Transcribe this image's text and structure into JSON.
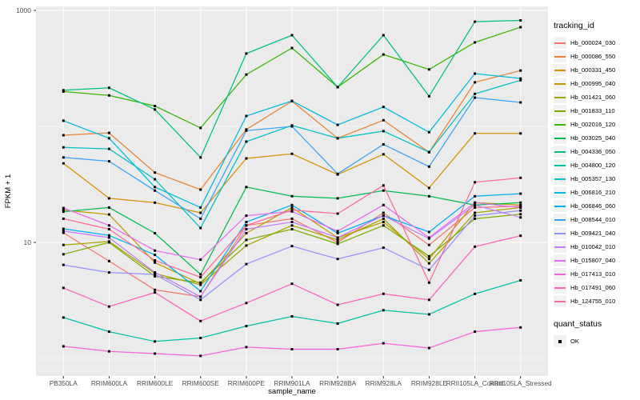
{
  "figure": {
    "outer_bg": "#ffffff",
    "panel_bg": "#ebebeb",
    "grid_color": "#ffffff",
    "tick_color": "#333333",
    "tick_label_color": "#4d4d4d",
    "axis_title_color": "#000000",
    "point_color": "#000000"
  },
  "chart_data": {
    "type": "line",
    "title": "",
    "xlabel": "sample_name",
    "ylabel": "FPKM + 1",
    "y_scale": "log10",
    "y_tick_labels": [
      "10",
      "1000"
    ],
    "y_ticks": [
      10,
      1000
    ],
    "y_minor_gridlines": [
      1,
      100
    ],
    "ylim": [
      0.7,
      1100
    ],
    "grid": true,
    "legend_position": "right",
    "legend_title": "tracking_id",
    "legend2_title": "quant_status",
    "legend2_items": [
      {
        "label": "OK",
        "marker": "black-square"
      }
    ],
    "categories": [
      "PB350LA",
      "RRIM600LA",
      "RRIM600LE",
      "RRIM600SE",
      "RRIM600PE",
      "RRIM901LA",
      "RRIM928BA",
      "RRIM928LA",
      "RRIM928LE",
      "RRII105LA_Control",
      "RRII105LA_Stressed"
    ],
    "series": [
      {
        "name": "Hb_000024_030",
        "color": "#F8766D",
        "values": [
          12.1,
          6.9,
          3.9,
          3.4,
          14,
          16,
          10,
          18,
          9.5,
          20,
          20.5
        ]
      },
      {
        "name": "Hb_000086_550",
        "color": "#EA8331",
        "values": [
          84,
          88,
          40,
          28.5,
          94,
          165,
          79,
          113,
          60,
          240,
          303
        ]
      },
      {
        "name": "Hb_000331_450",
        "color": "#D89000",
        "values": [
          48,
          24,
          22,
          18,
          53,
          58,
          38.5,
          57.5,
          29.5,
          87,
          87
        ]
      },
      {
        "name": "Hb_000995_040",
        "color": "#C09B00",
        "values": [
          19,
          17.4,
          6.7,
          4.4,
          12,
          20,
          11,
          15,
          7.2,
          22,
          21
        ]
      },
      {
        "name": "Hb_001421_060",
        "color": "#A3A500",
        "values": [
          9.5,
          10.2,
          5.4,
          4.3,
          9.4,
          14,
          10.5,
          16,
          6.6,
          18,
          20
        ]
      },
      {
        "name": "Hb_001833_110",
        "color": "#7CAE00",
        "values": [
          7.9,
          10.0,
          5.1,
          4.5,
          10.5,
          13,
          9.7,
          14,
          7.6,
          16,
          17.5
        ]
      },
      {
        "name": "Hb_002016_120",
        "color": "#39B600",
        "values": [
          200,
          185,
          150,
          97,
          280,
          474,
          218,
          417,
          310,
          530,
          716
        ]
      },
      {
        "name": "Hb_003025_040",
        "color": "#00BB4E",
        "values": [
          18.4,
          20,
          12,
          5.3,
          30,
          25,
          24,
          28,
          25,
          21,
          22
        ]
      },
      {
        "name": "Hb_004336_050",
        "color": "#00BF7D",
        "values": [
          205,
          215,
          140,
          54,
          425,
          611,
          218,
          611,
          182,
          800,
          820
        ]
      },
      {
        "name": "Hb_004800_120",
        "color": "#00C1A3",
        "values": [
          2.25,
          1.7,
          1.4,
          1.5,
          1.9,
          2.3,
          2.0,
          2.6,
          2.4,
          3.6,
          4.7
        ]
      },
      {
        "name": "Hb_005357_130",
        "color": "#00BFC4",
        "values": [
          66,
          64,
          35,
          13.3,
          74,
          102,
          79,
          91,
          60,
          191,
          250
        ]
      },
      {
        "name": "Hb_006816_210",
        "color": "#00BAE0",
        "values": [
          112,
          79,
          30,
          20,
          123,
          166,
          103,
          147,
          89,
          285,
          259
        ]
      },
      {
        "name": "Hb_006846_060",
        "color": "#00B0F6",
        "values": [
          13.1,
          11.5,
          7.8,
          3.8,
          15,
          21,
          12,
          17,
          12.3,
          25,
          26.3
        ]
      },
      {
        "name": "Hb_008544_010",
        "color": "#35A2FF",
        "values": [
          54,
          50,
          28,
          16,
          92,
          100,
          39,
          70,
          45,
          177,
          161
        ]
      },
      {
        "name": "Hb_009421_040",
        "color": "#9590FF",
        "values": [
          6.4,
          5.5,
          5.3,
          3.2,
          6.5,
          9.3,
          7.2,
          9.0,
          5.8,
          17,
          18.8
        ]
      },
      {
        "name": "Hb_010042_010",
        "color": "#C77CFF",
        "values": [
          12.5,
          11,
          5.5,
          3.4,
          13,
          15,
          11,
          17,
          10.8,
          21,
          16.4
        ]
      },
      {
        "name": "Hb_015807_040",
        "color": "#E76BF3",
        "values": [
          19.8,
          14,
          8.5,
          7.1,
          17,
          18.5,
          12.5,
          21,
          11,
          22,
          20
        ]
      },
      {
        "name": "Hb_017413_010",
        "color": "#FA62DB",
        "values": [
          1.27,
          1.15,
          1.1,
          1.05,
          1.25,
          1.2,
          1.2,
          1.35,
          1.23,
          1.7,
          1.85
        ]
      },
      {
        "name": "Hb_017491_060",
        "color": "#FF62BC",
        "values": [
          4.05,
          2.8,
          3.7,
          2.1,
          3.0,
          4.4,
          2.9,
          3.6,
          3.2,
          9.2,
          11.4
        ]
      },
      {
        "name": "Hb_124755_010",
        "color": "#FF6A98",
        "values": [
          16,
          13,
          7,
          5,
          14,
          19,
          17.7,
          31,
          4.5,
          33,
          36
        ]
      }
    ]
  }
}
